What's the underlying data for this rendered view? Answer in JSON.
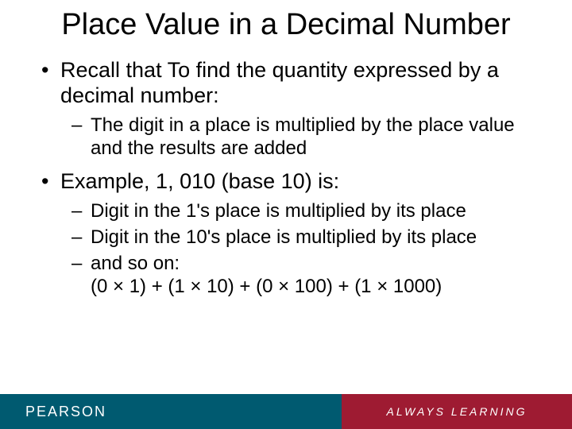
{
  "slide": {
    "title": "Place Value in a Decimal Number",
    "bullets": [
      {
        "text": "Recall that To find the quantity expressed by a decimal number:",
        "children": [
          {
            "text": "The digit in a place is multiplied by the place value and the results are added"
          }
        ]
      },
      {
        "text": "Example, 1, 010 (base 10) is:",
        "children": [
          {
            "text": "Digit in the 1's place is multiplied by its place"
          },
          {
            "text": "Digit in the 10's place is multiplied by its place"
          },
          {
            "text": "and so on:\n(0 × 1) + (1 × 10) + (0 × 100) + (1 × 1000)"
          }
        ]
      }
    ]
  },
  "footer": {
    "brand": "PEARSON",
    "tagline": "ALWAYS LEARNING",
    "left_bg": "#005a70",
    "right_bg": "#9e1b32"
  }
}
